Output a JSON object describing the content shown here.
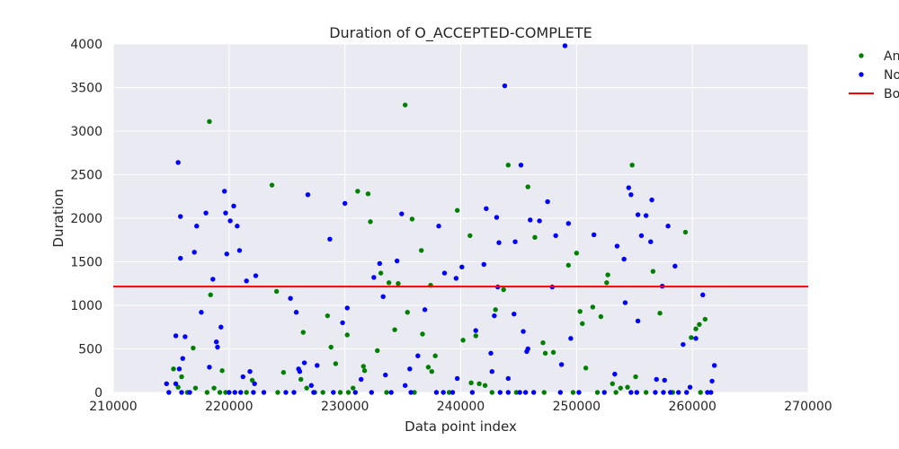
{
  "chart_data": {
    "type": "scatter",
    "title": "Duration of O_ACCEPTED-COMPLETE",
    "xlabel": "Data point index",
    "ylabel": "Duration",
    "xlim": [
      210000,
      270000
    ],
    "ylim": [
      0,
      4000
    ],
    "xticks": [
      210000,
      220000,
      230000,
      240000,
      250000,
      260000,
      270000
    ],
    "yticks": [
      0,
      500,
      1000,
      1500,
      2000,
      2500,
      3000,
      3500,
      4000
    ],
    "grid": true,
    "legend_position": "right-outside",
    "legend": [
      {
        "label": "An",
        "kind": "marker",
        "color": "#008000"
      },
      {
        "label": "No",
        "kind": "marker",
        "color": "#0000ff"
      },
      {
        "label": "Bo",
        "kind": "line",
        "color": "#ff0000"
      }
    ],
    "threshold": {
      "name": "Bo",
      "y": 1215,
      "color": "#ff0000"
    },
    "series": [
      {
        "name": "An",
        "color": "#008000",
        "points": [
          [
            215200,
            270
          ],
          [
            215600,
            60
          ],
          [
            215900,
            180
          ],
          [
            216900,
            510
          ],
          [
            217100,
            50
          ],
          [
            218100,
            0
          ],
          [
            218300,
            3110
          ],
          [
            218400,
            1120
          ],
          [
            218700,
            50
          ],
          [
            219400,
            250
          ],
          [
            219700,
            0
          ],
          [
            222000,
            140
          ],
          [
            223700,
            2380
          ],
          [
            224100,
            1160
          ],
          [
            224700,
            230
          ],
          [
            226200,
            150
          ],
          [
            226400,
            690
          ],
          [
            226700,
            50
          ],
          [
            228500,
            880
          ],
          [
            228800,
            520
          ],
          [
            229200,
            330
          ],
          [
            229600,
            0
          ],
          [
            230200,
            660
          ],
          [
            230700,
            50
          ],
          [
            231100,
            2310
          ],
          [
            231600,
            300
          ],
          [
            231700,
            250
          ],
          [
            232000,
            2280
          ],
          [
            232200,
            1960
          ],
          [
            232800,
            480
          ],
          [
            233100,
            1370
          ],
          [
            233800,
            1260
          ],
          [
            234300,
            720
          ],
          [
            234600,
            1250
          ],
          [
            235200,
            3300
          ],
          [
            235400,
            920
          ],
          [
            235800,
            1990
          ],
          [
            236600,
            1630
          ],
          [
            236700,
            670
          ],
          [
            237200,
            290
          ],
          [
            237400,
            1230
          ],
          [
            237500,
            240
          ],
          [
            237800,
            420
          ],
          [
            239700,
            2090
          ],
          [
            240200,
            600
          ],
          [
            240800,
            1800
          ],
          [
            240900,
            110
          ],
          [
            241300,
            650
          ],
          [
            241600,
            100
          ],
          [
            242100,
            80
          ],
          [
            243000,
            950
          ],
          [
            243700,
            1180
          ],
          [
            244100,
            2610
          ],
          [
            245800,
            2360
          ],
          [
            246400,
            1780
          ],
          [
            247100,
            570
          ],
          [
            247300,
            450
          ],
          [
            248000,
            460
          ],
          [
            249300,
            1460
          ],
          [
            250000,
            1600
          ],
          [
            250300,
            930
          ],
          [
            250500,
            790
          ],
          [
            250800,
            280
          ],
          [
            251400,
            980
          ],
          [
            252100,
            870
          ],
          [
            252600,
            1260
          ],
          [
            252700,
            1350
          ],
          [
            253100,
            100
          ],
          [
            253800,
            50
          ],
          [
            254400,
            60
          ],
          [
            254800,
            2610
          ],
          [
            255100,
            180
          ],
          [
            256600,
            1390
          ],
          [
            257200,
            910
          ],
          [
            259400,
            1840
          ],
          [
            259900,
            630
          ],
          [
            260300,
            730
          ],
          [
            260600,
            780
          ],
          [
            261100,
            840
          ],
          [
            216400,
            0
          ],
          [
            219200,
            0
          ],
          [
            221500,
            0
          ],
          [
            224200,
            0
          ],
          [
            227400,
            0
          ],
          [
            228100,
            0
          ],
          [
            230300,
            0
          ],
          [
            233600,
            0
          ],
          [
            236000,
            0
          ],
          [
            239000,
            0
          ],
          [
            242700,
            0
          ],
          [
            244800,
            0
          ],
          [
            247200,
            0
          ],
          [
            249700,
            0
          ],
          [
            251800,
            0
          ],
          [
            253400,
            0
          ],
          [
            256000,
            0
          ],
          [
            258300,
            0
          ],
          [
            260700,
            0
          ]
        ]
      },
      {
        "name": "No",
        "color": "#0000ff",
        "points": [
          [
            214600,
            100
          ],
          [
            215400,
            100
          ],
          [
            215600,
            2640
          ],
          [
            215700,
            270
          ],
          [
            215800,
            1540
          ],
          [
            215800,
            2020
          ],
          [
            216000,
            390
          ],
          [
            216200,
            640
          ],
          [
            215400,
            650
          ],
          [
            217000,
            1610
          ],
          [
            217200,
            1910
          ],
          [
            217600,
            920
          ],
          [
            218000,
            2060
          ],
          [
            218300,
            290
          ],
          [
            218600,
            1300
          ],
          [
            218900,
            580
          ],
          [
            219000,
            520
          ],
          [
            219300,
            750
          ],
          [
            219600,
            2310
          ],
          [
            219700,
            2060
          ],
          [
            219800,
            1590
          ],
          [
            220100,
            1970
          ],
          [
            220400,
            2140
          ],
          [
            220700,
            1910
          ],
          [
            220900,
            1630
          ],
          [
            221200,
            180
          ],
          [
            221500,
            1280
          ],
          [
            221800,
            240
          ],
          [
            222300,
            1340
          ],
          [
            222200,
            100
          ],
          [
            225300,
            1080
          ],
          [
            225800,
            920
          ],
          [
            226000,
            270
          ],
          [
            226100,
            240
          ],
          [
            226500,
            340
          ],
          [
            226800,
            2270
          ],
          [
            227100,
            80
          ],
          [
            227600,
            310
          ],
          [
            228700,
            1760
          ],
          [
            229800,
            800
          ],
          [
            230000,
            2170
          ],
          [
            230200,
            970
          ],
          [
            231400,
            150
          ],
          [
            232500,
            1320
          ],
          [
            233000,
            1480
          ],
          [
            233300,
            1100
          ],
          [
            233500,
            200
          ],
          [
            234500,
            1510
          ],
          [
            234900,
            2050
          ],
          [
            235200,
            80
          ],
          [
            235600,
            270
          ],
          [
            236300,
            420
          ],
          [
            236900,
            950
          ],
          [
            238100,
            1910
          ],
          [
            238600,
            1370
          ],
          [
            239600,
            1310
          ],
          [
            240100,
            1440
          ],
          [
            239700,
            160
          ],
          [
            241300,
            710
          ],
          [
            242000,
            1470
          ],
          [
            242200,
            2110
          ],
          [
            242700,
            240
          ],
          [
            242600,
            450
          ],
          [
            242900,
            880
          ],
          [
            243100,
            2010
          ],
          [
            243200,
            1210
          ],
          [
            243300,
            1720
          ],
          [
            243800,
            3520
          ],
          [
            244100,
            160
          ],
          [
            244600,
            900
          ],
          [
            244700,
            1730
          ],
          [
            245200,
            2610
          ],
          [
            245400,
            700
          ],
          [
            245700,
            470
          ],
          [
            245800,
            500
          ],
          [
            246000,
            1980
          ],
          [
            246800,
            1970
          ],
          [
            247500,
            2190
          ],
          [
            247900,
            1210
          ],
          [
            248200,
            1800
          ],
          [
            248700,
            320
          ],
          [
            249000,
            3980
          ],
          [
            249300,
            1940
          ],
          [
            249500,
            620
          ],
          [
            251500,
            1810
          ],
          [
            253500,
            1680
          ],
          [
            253300,
            210
          ],
          [
            254100,
            1530
          ],
          [
            254200,
            1030
          ],
          [
            254500,
            2350
          ],
          [
            254700,
            2270
          ],
          [
            255300,
            2040
          ],
          [
            255300,
            820
          ],
          [
            255600,
            1800
          ],
          [
            256000,
            2030
          ],
          [
            256400,
            1730
          ],
          [
            256500,
            2210
          ],
          [
            256900,
            150
          ],
          [
            257400,
            1220
          ],
          [
            257600,
            140
          ],
          [
            257900,
            1910
          ],
          [
            258500,
            1450
          ],
          [
            259200,
            550
          ],
          [
            259800,
            60
          ],
          [
            260300,
            620
          ],
          [
            260900,
            1120
          ],
          [
            261700,
            130
          ],
          [
            261900,
            310
          ],
          [
            214800,
            0
          ],
          [
            215900,
            0
          ],
          [
            216600,
            0
          ],
          [
            220000,
            0
          ],
          [
            220500,
            0
          ],
          [
            221000,
            0
          ],
          [
            222100,
            0
          ],
          [
            223000,
            0
          ],
          [
            224900,
            0
          ],
          [
            225600,
            0
          ],
          [
            227300,
            0
          ],
          [
            229000,
            0
          ],
          [
            230900,
            0
          ],
          [
            232300,
            0
          ],
          [
            234000,
            0
          ],
          [
            235700,
            0
          ],
          [
            237900,
            0
          ],
          [
            238500,
            0
          ],
          [
            239300,
            0
          ],
          [
            241000,
            0
          ],
          [
            243400,
            0
          ],
          [
            244100,
            0
          ],
          [
            245100,
            0
          ],
          [
            245600,
            0
          ],
          [
            246300,
            0
          ],
          [
            248600,
            0
          ],
          [
            250200,
            0
          ],
          [
            252400,
            0
          ],
          [
            254700,
            0
          ],
          [
            255200,
            0
          ],
          [
            256800,
            0
          ],
          [
            257500,
            0
          ],
          [
            258100,
            0
          ],
          [
            258800,
            0
          ],
          [
            259500,
            0
          ],
          [
            261300,
            0
          ],
          [
            261600,
            0
          ]
        ]
      }
    ]
  }
}
